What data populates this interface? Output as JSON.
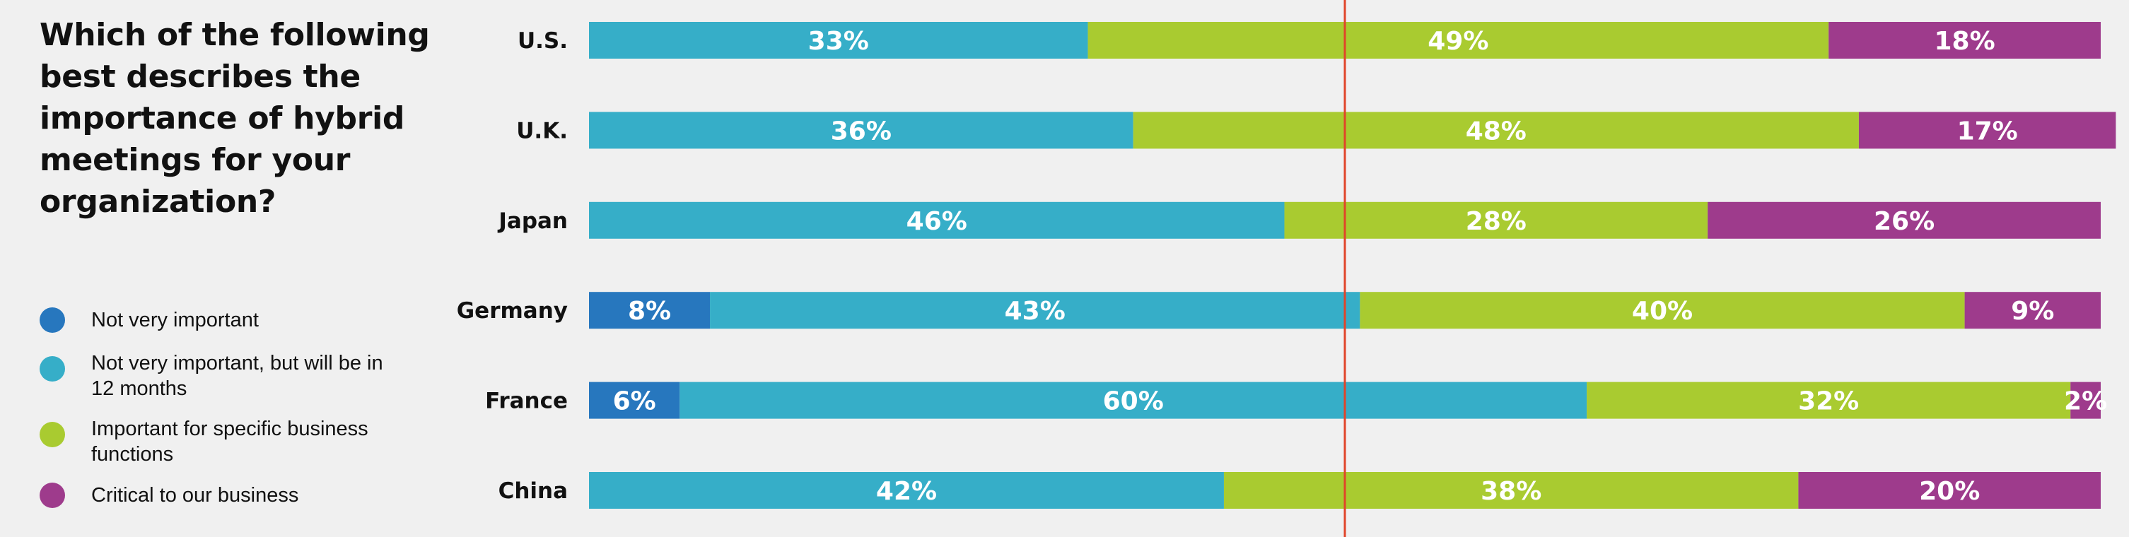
{
  "question": "Which of the following best describes the importance of hybrid meetings for your organization?",
  "colors": {
    "not_very_important": "#2777be",
    "not_yet": "#36aec8",
    "specific": "#a9cb30",
    "critical": "#9e3b8c",
    "reference_line": "#e0452a",
    "background": "#f0f0f0"
  },
  "chart_data": {
    "type": "bar",
    "orientation": "horizontal",
    "stacked": true,
    "title": "Which of the following best describes the importance of hybrid meetings for your organization?",
    "categories": [
      "U.S.",
      "U.K.",
      "Japan",
      "Germany",
      "France",
      "China"
    ],
    "series": [
      {
        "name": "Not very important",
        "color": "#2777be",
        "values": [
          0,
          0,
          0,
          8,
          6,
          0
        ]
      },
      {
        "name": "Not very important, but will be in 12 months",
        "color": "#36aec8",
        "values": [
          33,
          36,
          46,
          43,
          60,
          42
        ]
      },
      {
        "name": "Important for specific business functions",
        "color": "#a9cb30",
        "values": [
          49,
          48,
          28,
          40,
          32,
          38
        ]
      },
      {
        "name": "Critical to our business",
        "color": "#9e3b8c",
        "values": [
          18,
          17,
          26,
          9,
          2,
          20
        ]
      }
    ],
    "value_suffix": "%",
    "xlim": [
      0,
      100
    ],
    "reference_line": 50,
    "grid": false,
    "legend_position": "left"
  }
}
